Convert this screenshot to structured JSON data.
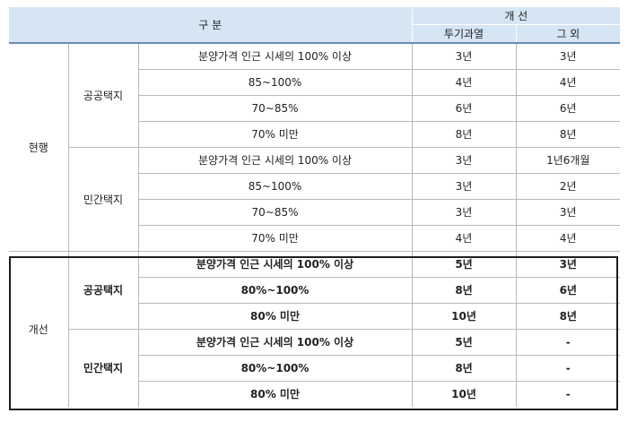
{
  "header": {
    "category": "구 분",
    "improvement": "개 선",
    "speculative": "투기과열",
    "other": "그 외"
  },
  "current": {
    "label": "현행",
    "groups": [
      {
        "name": "공공택지",
        "rows": [
          {
            "condition": "분양가격 인근 시세의 100% 이상",
            "speculative": "3년",
            "other": "3년"
          },
          {
            "condition": "85~100%",
            "speculative": "4년",
            "other": "4년"
          },
          {
            "condition": "70~85%",
            "speculative": "6년",
            "other": "6년"
          },
          {
            "condition": "70% 미만",
            "speculative": "8년",
            "other": "8년"
          }
        ]
      },
      {
        "name": "민간택지",
        "rows": [
          {
            "condition": "분양가격 인근 시세의 100% 이상",
            "speculative": "3년",
            "other": "1년6개월"
          },
          {
            "condition": "85~100%",
            "speculative": "3년",
            "other": "2년"
          },
          {
            "condition": "70~85%",
            "speculative": "3년",
            "other": "3년"
          },
          {
            "condition": "70% 미만",
            "speculative": "4년",
            "other": "4년"
          }
        ]
      }
    ]
  },
  "improved": {
    "label": "개선",
    "groups": [
      {
        "name": "공공택지",
        "rows": [
          {
            "condition": "분양가격 인근 시세의 100% 이상",
            "speculative": "5년",
            "other": "3년"
          },
          {
            "condition": "80%~100%",
            "speculative": "8년",
            "other": "6년"
          },
          {
            "condition": "80% 미만",
            "speculative": "10년",
            "other": "8년"
          }
        ]
      },
      {
        "name": "민간택지",
        "rows": [
          {
            "condition": "분양가격 인근 시세의 100% 이상",
            "speculative": "5년",
            "other": "-"
          },
          {
            "condition": "80%~100%",
            "speculative": "8년",
            "other": "-"
          },
          {
            "condition": "80% 미만",
            "speculative": "10년",
            "other": "-"
          }
        ]
      }
    ]
  }
}
